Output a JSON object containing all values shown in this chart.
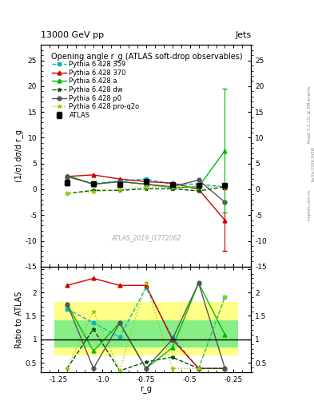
{
  "title_top": "13000 GeV pp",
  "title_right": "Jets",
  "plot_title": "Opening angle r_g (ATLAS soft-drop observables)",
  "xlabel": "r_g",
  "ylabel_main": "(1/σ) dσ/d r_g",
  "ylabel_ratio": "Ratio to ATLAS",
  "right_label_main": "Rivet 3.1.10, ≥ 3M events",
  "right_label_arxiv": "[arXiv:1306.3436]",
  "right_label_mcplots": "mcplots.cern.ch",
  "watermark": "ATLAS_2019_I1772062",
  "x_values": [
    -1.2,
    -1.05,
    -0.9,
    -0.75,
    -0.6,
    -0.45,
    -0.3
  ],
  "xlim": [
    -1.35,
    -0.15
  ],
  "ylim_main": [
    -15,
    28
  ],
  "ylim_ratio": [
    0.3,
    2.55
  ],
  "yticks_main": [
    -15,
    -10,
    -5,
    0,
    5,
    10,
    15,
    20,
    25
  ],
  "xticks": [
    -1.25,
    -1.0,
    -0.75,
    -0.5,
    -0.25
  ],
  "atlas_y": [
    1.3,
    1.1,
    1.0,
    1.5,
    1.0,
    0.8,
    0.7
  ],
  "atlas_yerr": [
    0.5,
    0.4,
    0.3,
    0.4,
    0.2,
    0.3,
    0.3
  ],
  "atlas_color": "black",
  "atlas_marker": "s",
  "atlas_markersize": 4,
  "p359_y": [
    2.5,
    1.1,
    1.6,
    2.0,
    1.0,
    1.0,
    0.5
  ],
  "p359_color": "#00BBBB",
  "p359_linestyle": "--",
  "p359_marker": "s",
  "p370_y": [
    2.5,
    2.8,
    2.0,
    1.5,
    1.2,
    0.0,
    -6.0
  ],
  "p370_color": "#CC0000",
  "p370_linestyle": "-",
  "p370_marker": "^",
  "p370_yerr_last": 6.0,
  "pa_y": [
    2.7,
    1.0,
    1.5,
    1.0,
    0.3,
    0.5,
    7.5
  ],
  "pa_color": "#00BB00",
  "pa_linestyle": "-",
  "pa_marker": "^",
  "pa_yerr_last": 12.0,
  "pdw_y": [
    -0.8,
    -0.2,
    -0.2,
    0.1,
    0.1,
    -0.3,
    0.5
  ],
  "pdw_color": "#005500",
  "pdw_linestyle": "--",
  "pdw_marker": "*",
  "pp0_y": [
    2.5,
    1.0,
    1.5,
    1.0,
    0.5,
    1.8,
    -2.5
  ],
  "pp0_color": "#555555",
  "pp0_linestyle": "-",
  "pp0_marker": "o",
  "pproq2o_y": [
    -0.8,
    -0.5,
    0.0,
    0.5,
    0.5,
    0.5,
    0.5
  ],
  "pproq2o_color": "#99CC00",
  "pproq2o_linestyle": ":",
  "pproq2o_marker": "*",
  "ratio_p359": [
    1.65,
    1.35,
    1.05,
    2.1,
    1.05,
    0.38,
    1.9
  ],
  "ratio_p370": [
    2.15,
    2.3,
    2.15,
    2.15,
    1.0,
    0.38,
    0.38
  ],
  "ratio_pa": [
    1.75,
    0.75,
    1.35,
    0.38,
    0.82,
    2.2,
    1.1
  ],
  "ratio_pdw": [
    0.38,
    1.22,
    0.33,
    0.52,
    0.62,
    0.38,
    0.38
  ],
  "ratio_pp0": [
    1.75,
    0.38,
    1.35,
    0.38,
    1.0,
    2.2,
    0.38
  ],
  "ratio_pproq2o": [
    0.38,
    1.6,
    0.33,
    2.2,
    0.38,
    0.38,
    1.9
  ],
  "band_yellow_lo": 0.65,
  "band_yellow_hi": 1.8,
  "band_green_lo": 0.82,
  "band_green_hi": 1.4,
  "band_yellow_color": "#FFFF88",
  "band_green_color": "#88EE88",
  "bg_color": "#ffffff",
  "fontsize_title": 7,
  "fontsize_label": 7,
  "fontsize_legend": 6,
  "fontsize_tick": 6.5
}
